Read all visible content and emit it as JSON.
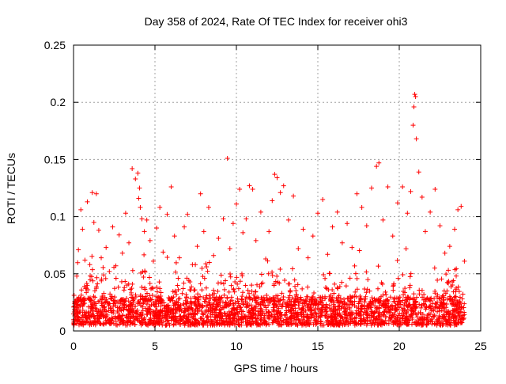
{
  "chart_data": {
    "type": "scatter",
    "title": "Day 358 of 2024, Rate Of TEC Index for receiver ohi3",
    "xlabel": "GPS time / hours",
    "ylabel": "ROTI / TECUs",
    "xlim": [
      0,
      25
    ],
    "ylim": [
      0,
      0.25
    ],
    "x_ticks": [
      {
        "value": 0,
        "label": "0"
      },
      {
        "value": 5,
        "label": "5"
      },
      {
        "value": 10,
        "label": "10"
      },
      {
        "value": 15,
        "label": "15"
      },
      {
        "value": 20,
        "label": "20"
      },
      {
        "value": 25,
        "label": "25"
      }
    ],
    "y_ticks": [
      {
        "value": 0,
        "label": "0"
      },
      {
        "value": 0.05,
        "label": "0.05"
      },
      {
        "value": 0.1,
        "label": "0.1"
      },
      {
        "value": 0.15,
        "label": "0.15"
      },
      {
        "value": 0.2,
        "label": "0.2"
      },
      {
        "value": 0.25,
        "label": "0.25"
      }
    ],
    "grid": true,
    "legend": "none",
    "marker": "plus",
    "marker_color": "#ff0000",
    "series": [
      {
        "x": [
          0.1,
          0.15,
          0.2,
          0.3,
          0.45,
          0.55,
          0.7,
          0.85,
          1.0,
          1.15,
          1.25,
          1.4,
          1.55,
          1.7,
          1.85,
          2.0,
          2.2,
          2.4,
          2.6,
          2.8,
          3.0,
          3.2,
          3.4,
          3.6,
          3.8,
          3.95,
          4.0,
          4.05,
          4.1,
          4.2,
          4.35,
          4.5,
          4.7,
          4.9,
          5.1,
          5.3,
          5.5,
          5.75,
          6.0,
          6.2,
          6.5,
          6.8,
          7.0,
          7.3,
          7.6,
          7.8,
          8.0,
          8.3,
          8.6,
          8.9,
          9.2,
          9.45,
          9.6,
          9.8,
          10.0,
          10.2,
          10.4,
          10.6,
          10.8,
          11.0,
          11.2,
          11.5,
          11.8,
          12.0,
          12.2,
          12.35,
          12.5,
          12.7,
          12.9,
          13.2,
          13.5,
          13.8,
          14.1,
          14.4,
          14.7,
          15.0,
          15.3,
          15.6,
          15.9,
          16.2,
          16.5,
          16.8,
          17.1,
          17.4,
          17.7,
          18.0,
          18.3,
          18.6,
          18.75,
          19.0,
          19.3,
          19.6,
          19.9,
          20.2,
          20.5,
          20.7,
          20.85,
          20.9,
          20.95,
          21.0,
          21.05,
          21.2,
          21.4,
          21.6,
          21.9,
          22.2,
          22.5,
          22.8,
          23.1,
          23.4,
          23.6,
          23.8,
          24.0
        ],
        "y": [
          0.014,
          0.022,
          0.048,
          0.071,
          0.106,
          0.089,
          0.062,
          0.113,
          0.058,
          0.121,
          0.095,
          0.12,
          0.088,
          0.064,
          0.049,
          0.073,
          0.052,
          0.091,
          0.057,
          0.084,
          0.068,
          0.103,
          0.077,
          0.142,
          0.133,
          0.138,
          0.116,
          0.125,
          0.108,
          0.098,
          0.087,
          0.097,
          0.079,
          0.061,
          0.09,
          0.108,
          0.069,
          0.102,
          0.126,
          0.083,
          0.064,
          0.091,
          0.102,
          0.058,
          0.074,
          0.12,
          0.087,
          0.108,
          0.066,
          0.081,
          0.098,
          0.151,
          0.072,
          0.094,
          0.111,
          0.124,
          0.086,
          0.098,
          0.127,
          0.124,
          0.079,
          0.104,
          0.063,
          0.087,
          0.114,
          0.137,
          0.134,
          0.121,
          0.127,
          0.097,
          0.118,
          0.072,
          0.089,
          0.064,
          0.083,
          0.103,
          0.115,
          0.067,
          0.091,
          0.104,
          0.077,
          0.094,
          0.073,
          0.12,
          0.108,
          0.092,
          0.125,
          0.144,
          0.147,
          0.097,
          0.126,
          0.083,
          0.112,
          0.126,
          0.103,
          0.122,
          0.18,
          0.196,
          0.207,
          0.205,
          0.168,
          0.139,
          0.117,
          0.087,
          0.104,
          0.124,
          0.092,
          0.068,
          0.074,
          0.089,
          0.106,
          0.109,
          0.061
        ],
        "baseline": {
          "x": [
            0,
            24
          ],
          "y_low": 0.005,
          "y_high": 0.03
        }
      }
    ]
  }
}
